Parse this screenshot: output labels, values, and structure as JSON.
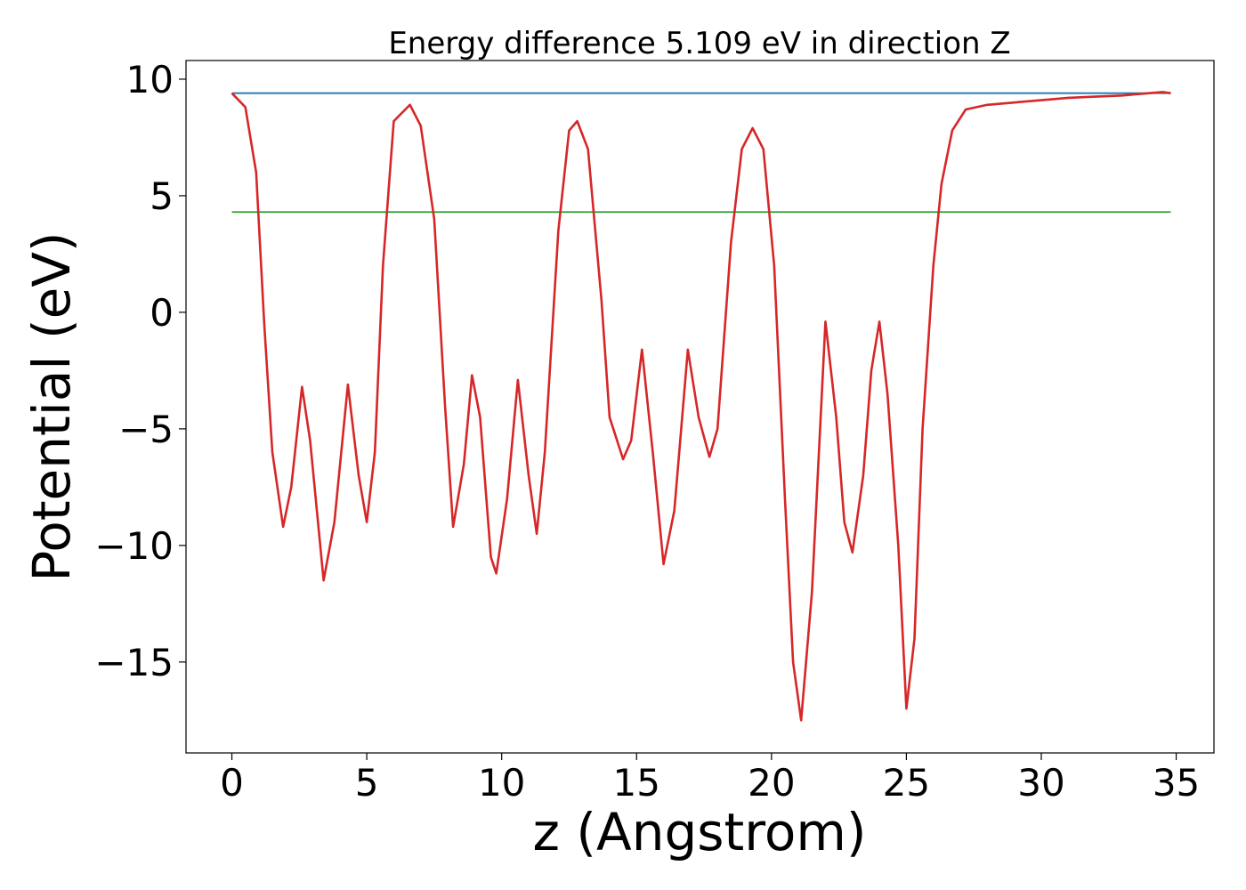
{
  "chart_data": {
    "type": "line",
    "title": "Energy difference 5.109 eV in direction Z",
    "xlabel": "z (Angstrom)",
    "ylabel": "Potential (eV)",
    "xlim": [
      -1.7,
      36.4
    ],
    "ylim": [
      -18.9,
      10.8
    ],
    "xticks": [
      0,
      5,
      10,
      15,
      20,
      25,
      30,
      35
    ],
    "yticks": [
      10,
      5,
      0,
      -5,
      -10,
      -15
    ],
    "xtick_labels": [
      "0",
      "5",
      "10",
      "15",
      "20",
      "25",
      "30",
      "35"
    ],
    "ytick_labels": [
      "10",
      "5",
      "0",
      "−5",
      "−10",
      "−15"
    ],
    "grid": false,
    "legend": false,
    "series": [
      {
        "color": "#d62728",
        "x": [
          0,
          0.5,
          0.9,
          1.2,
          1.5,
          1.9,
          2.2,
          2.6,
          2.9,
          3.4,
          3.8,
          4.3,
          4.7,
          5.0,
          5.3,
          5.6,
          6.0,
          6.6,
          7.0,
          7.5,
          7.9,
          8.2,
          8.6,
          8.9,
          9.2,
          9.6,
          9.8,
          10.2,
          10.6,
          11.0,
          11.3,
          11.6,
          12.1,
          12.5,
          12.8,
          13.2,
          13.7,
          14.0,
          14.5,
          14.8,
          15.2,
          15.6,
          16.0,
          16.4,
          16.9,
          17.3,
          17.7,
          18.0,
          18.5,
          18.9,
          19.3,
          19.7,
          20.1,
          20.5,
          20.8,
          21.1,
          21.5,
          22.0,
          22.4,
          22.7,
          23.0,
          23.4,
          23.7,
          24.0,
          24.3,
          24.7,
          25.0,
          25.3,
          25.6,
          26.0,
          26.3,
          26.7,
          27.2,
          28.0,
          29.0,
          30.0,
          31.0,
          32.0,
          33.0,
          34.0,
          34.5,
          34.8
        ],
        "y": [
          9.4,
          8.8,
          6.0,
          -0.5,
          -6.0,
          -9.2,
          -7.5,
          -3.2,
          -5.5,
          -11.5,
          -9.0,
          -3.1,
          -7.0,
          -9.0,
          -6.0,
          2.0,
          8.2,
          8.9,
          8.0,
          4.0,
          -4.0,
          -9.2,
          -6.5,
          -2.7,
          -4.5,
          -10.5,
          -11.2,
          -8.0,
          -2.9,
          -7.0,
          -9.5,
          -6.0,
          3.5,
          7.8,
          8.2,
          7.0,
          0.5,
          -4.5,
          -6.3,
          -5.5,
          -1.6,
          -6.0,
          -10.8,
          -8.5,
          -1.6,
          -4.5,
          -6.2,
          -5.0,
          3.0,
          7.0,
          7.9,
          7.0,
          2.0,
          -8.0,
          -15.0,
          -17.5,
          -12.0,
          -0.4,
          -4.5,
          -9.0,
          -10.3,
          -7.0,
          -2.5,
          -0.4,
          -3.5,
          -10.0,
          -17.0,
          -14.0,
          -5.0,
          2.0,
          5.5,
          7.8,
          8.7,
          8.9,
          9.0,
          9.1,
          9.2,
          9.25,
          9.3,
          9.4,
          9.45,
          9.4
        ]
      },
      {
        "color": "#1f77b4",
        "x": [
          0,
          34.8
        ],
        "y": [
          9.4,
          9.4
        ]
      },
      {
        "color": "#2ca02c",
        "x": [
          0,
          34.8
        ],
        "y": [
          4.3,
          4.3
        ]
      }
    ]
  }
}
